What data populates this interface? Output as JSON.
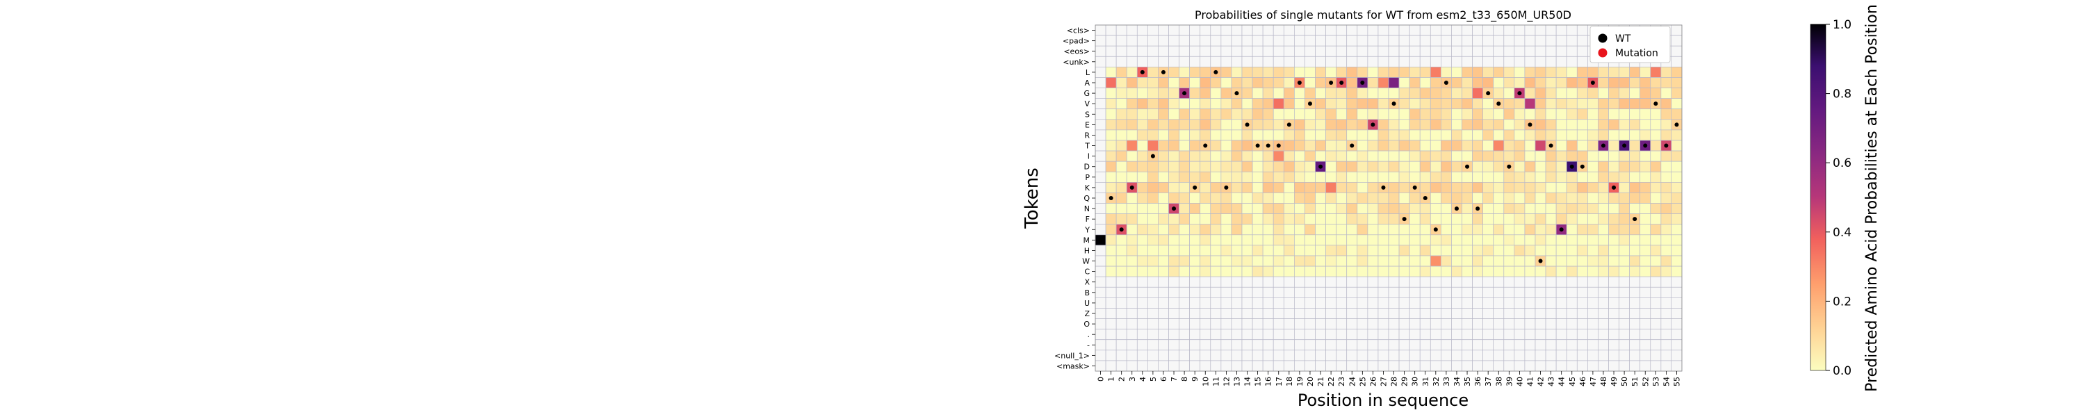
{
  "chart_data": {
    "type": "heatmap",
    "title": "Probabilities of single mutants for WT from esm2_t33_650M_UR50D",
    "xlabel": "Position in sequence",
    "ylabel": "Tokens",
    "colorbar_label": "Predicted Amino Acid Probabilities at Each Position",
    "colormap": "magma_r",
    "clim": [
      0.0,
      1.0
    ],
    "colorbar_ticks": [
      "0.0",
      "0.2",
      "0.4",
      "0.6",
      "0.8",
      "1.0"
    ],
    "x": [
      0,
      1,
      2,
      3,
      4,
      5,
      6,
      7,
      8,
      9,
      10,
      11,
      12,
      13,
      14,
      15,
      16,
      17,
      18,
      19,
      20,
      21,
      22,
      23,
      24,
      25,
      26,
      27,
      28,
      29,
      30,
      31,
      32,
      33,
      34,
      35,
      36,
      37,
      38,
      39,
      40,
      41,
      42,
      43,
      44,
      45,
      46,
      47,
      48,
      49,
      50,
      51,
      52,
      53,
      54,
      55
    ],
    "y": [
      "<cls>",
      "<pad>",
      "<eos>",
      "<unk>",
      "L",
      "A",
      "G",
      "V",
      "S",
      "E",
      "R",
      "T",
      "I",
      "D",
      "P",
      "K",
      "Q",
      "N",
      "F",
      "Y",
      "M",
      "H",
      "W",
      "C",
      "X",
      "B",
      "U",
      "Z",
      "O",
      ".",
      "-",
      "<null_1>",
      "<mask>"
    ],
    "legend": {
      "position": "top-right",
      "items": [
        {
          "label": "WT",
          "color": "#000000"
        },
        {
          "label": "Mutation",
          "color": "#e8141c"
        }
      ]
    },
    "wild_type": [
      {
        "x": 0,
        "y": "M"
      },
      {
        "x": 1,
        "y": "Q"
      },
      {
        "x": 2,
        "y": "Y"
      },
      {
        "x": 3,
        "y": "K"
      },
      {
        "x": 4,
        "y": "L"
      },
      {
        "x": 5,
        "y": "I"
      },
      {
        "x": 6,
        "y": "L"
      },
      {
        "x": 7,
        "y": "N"
      },
      {
        "x": 8,
        "y": "G"
      },
      {
        "x": 9,
        "y": "K"
      },
      {
        "x": 10,
        "y": "T"
      },
      {
        "x": 11,
        "y": "L"
      },
      {
        "x": 12,
        "y": "K"
      },
      {
        "x": 13,
        "y": "G"
      },
      {
        "x": 14,
        "y": "E"
      },
      {
        "x": 15,
        "y": "T"
      },
      {
        "x": 16,
        "y": "T"
      },
      {
        "x": 17,
        "y": "T"
      },
      {
        "x": 18,
        "y": "E"
      },
      {
        "x": 19,
        "y": "A"
      },
      {
        "x": 20,
        "y": "V"
      },
      {
        "x": 21,
        "y": "D"
      },
      {
        "x": 22,
        "y": "A"
      },
      {
        "x": 23,
        "y": "A"
      },
      {
        "x": 24,
        "y": "T"
      },
      {
        "x": 25,
        "y": "A"
      },
      {
        "x": 26,
        "y": "E"
      },
      {
        "x": 27,
        "y": "K"
      },
      {
        "x": 28,
        "y": "V"
      },
      {
        "x": 29,
        "y": "F"
      },
      {
        "x": 30,
        "y": "K"
      },
      {
        "x": 31,
        "y": "Q"
      },
      {
        "x": 32,
        "y": "Y"
      },
      {
        "x": 33,
        "y": "A"
      },
      {
        "x": 34,
        "y": "N"
      },
      {
        "x": 35,
        "y": "D"
      },
      {
        "x": 36,
        "y": "N"
      },
      {
        "x": 37,
        "y": "G"
      },
      {
        "x": 38,
        "y": "V"
      },
      {
        "x": 39,
        "y": "D"
      },
      {
        "x": 40,
        "y": "G"
      },
      {
        "x": 41,
        "y": "E"
      },
      {
        "x": 42,
        "y": "W"
      },
      {
        "x": 43,
        "y": "T"
      },
      {
        "x": 44,
        "y": "Y"
      },
      {
        "x": 45,
        "y": "D"
      },
      {
        "x": 46,
        "y": "D"
      },
      {
        "x": 47,
        "y": "A"
      },
      {
        "x": 48,
        "y": "T"
      },
      {
        "x": 49,
        "y": "K"
      },
      {
        "x": 50,
        "y": "T"
      },
      {
        "x": 51,
        "y": "F"
      },
      {
        "x": 52,
        "y": "T"
      },
      {
        "x": 53,
        "y": "V"
      },
      {
        "x": 54,
        "y": "T"
      },
      {
        "x": 55,
        "y": "E"
      }
    ],
    "strong_cells": [
      {
        "x": 0,
        "y": "M",
        "value": 1.0
      },
      {
        "x": 1,
        "y": "A",
        "value": 0.35
      },
      {
        "x": 2,
        "y": "Y",
        "value": 0.42
      },
      {
        "x": 3,
        "y": "T",
        "value": 0.3
      },
      {
        "x": 3,
        "y": "K",
        "value": 0.42
      },
      {
        "x": 4,
        "y": "L",
        "value": 0.38
      },
      {
        "x": 5,
        "y": "T",
        "value": 0.32
      },
      {
        "x": 7,
        "y": "N",
        "value": 0.45
      },
      {
        "x": 8,
        "y": "G",
        "value": 0.55
      },
      {
        "x": 17,
        "y": "V",
        "value": 0.35
      },
      {
        "x": 17,
        "y": "I",
        "value": 0.3
      },
      {
        "x": 19,
        "y": "A",
        "value": 0.3
      },
      {
        "x": 21,
        "y": "D",
        "value": 0.75
      },
      {
        "x": 22,
        "y": "K",
        "value": 0.32
      },
      {
        "x": 23,
        "y": "A",
        "value": 0.4
      },
      {
        "x": 25,
        "y": "A",
        "value": 0.7
      },
      {
        "x": 26,
        "y": "E",
        "value": 0.45
      },
      {
        "x": 27,
        "y": "A",
        "value": 0.3
      },
      {
        "x": 28,
        "y": "A",
        "value": 0.68
      },
      {
        "x": 32,
        "y": "L",
        "value": 0.32
      },
      {
        "x": 32,
        "y": "W",
        "value": 0.28
      },
      {
        "x": 36,
        "y": "G",
        "value": 0.35
      },
      {
        "x": 38,
        "y": "T",
        "value": 0.3
      },
      {
        "x": 40,
        "y": "G",
        "value": 0.48
      },
      {
        "x": 41,
        "y": "V",
        "value": 0.5
      },
      {
        "x": 42,
        "y": "T",
        "value": 0.45
      },
      {
        "x": 44,
        "y": "Y",
        "value": 0.6
      },
      {
        "x": 45,
        "y": "D",
        "value": 0.88
      },
      {
        "x": 47,
        "y": "A",
        "value": 0.4
      },
      {
        "x": 48,
        "y": "T",
        "value": 0.65
      },
      {
        "x": 49,
        "y": "K",
        "value": 0.38
      },
      {
        "x": 50,
        "y": "T",
        "value": 0.82
      },
      {
        "x": 52,
        "y": "T",
        "value": 0.72
      },
      {
        "x": 53,
        "y": "L",
        "value": 0.32
      },
      {
        "x": 54,
        "y": "T",
        "value": 0.45
      }
    ],
    "grid": true
  }
}
